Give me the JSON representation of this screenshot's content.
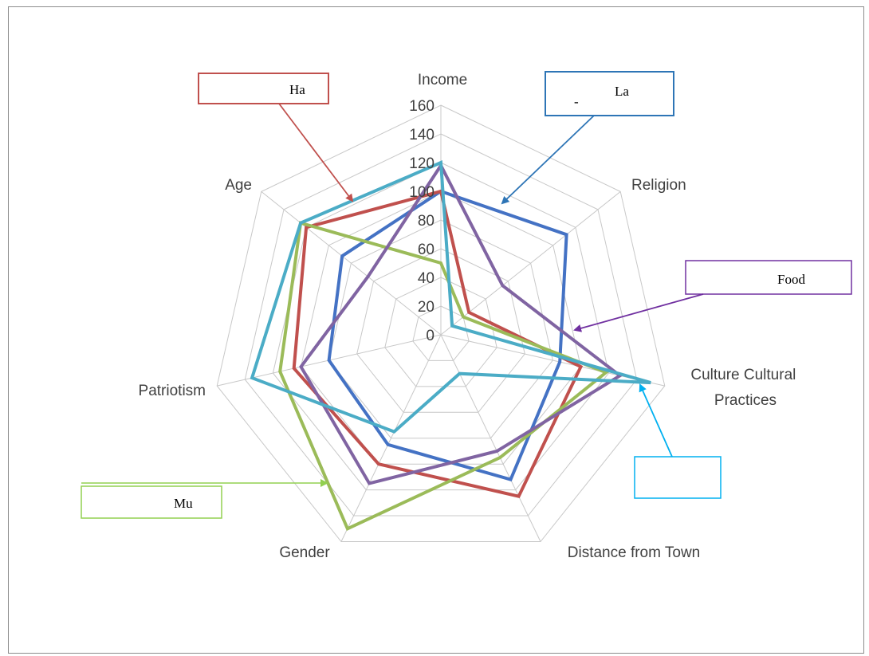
{
  "chart_data": {
    "type": "radar",
    "axes": [
      "Income",
      "Religion",
      "Culture Cultural Practices",
      "Distance from Town",
      "Gender",
      "Patriotism",
      "Age"
    ],
    "rlim": [
      0,
      160
    ],
    "ticks": [
      "0",
      "20",
      "40",
      "60",
      "80",
      "100",
      "120",
      "140",
      "160"
    ],
    "grid": true,
    "series": [
      {
        "color": "#4472c4",
        "values": [
          100,
          112,
          85,
          112,
          85,
          80,
          88
        ]
      },
      {
        "color": "#c0504d",
        "values": [
          100,
          25,
          100,
          125,
          100,
          105,
          120
        ]
      },
      {
        "color": "#9bbb59",
        "values": [
          50,
          20,
          118,
          95,
          150,
          115,
          125
        ]
      },
      {
        "color": "#8064a2",
        "values": [
          118,
          55,
          128,
          90,
          115,
          100,
          65
        ]
      },
      {
        "color": "#4bacc6",
        "values": [
          120,
          10,
          150,
          30,
          75,
          135,
          125
        ]
      }
    ],
    "callouts": [
      {
        "label": "Ha",
        "color": "#c0504d"
      },
      {
        "label": "La",
        "prefix": "-",
        "color": "#2e75b6"
      },
      {
        "label": "Food",
        "color": "#7030a0"
      },
      {
        "label": "",
        "color": "#00b0f0"
      },
      {
        "label": "Mu",
        "color": "#92d050"
      }
    ]
  }
}
